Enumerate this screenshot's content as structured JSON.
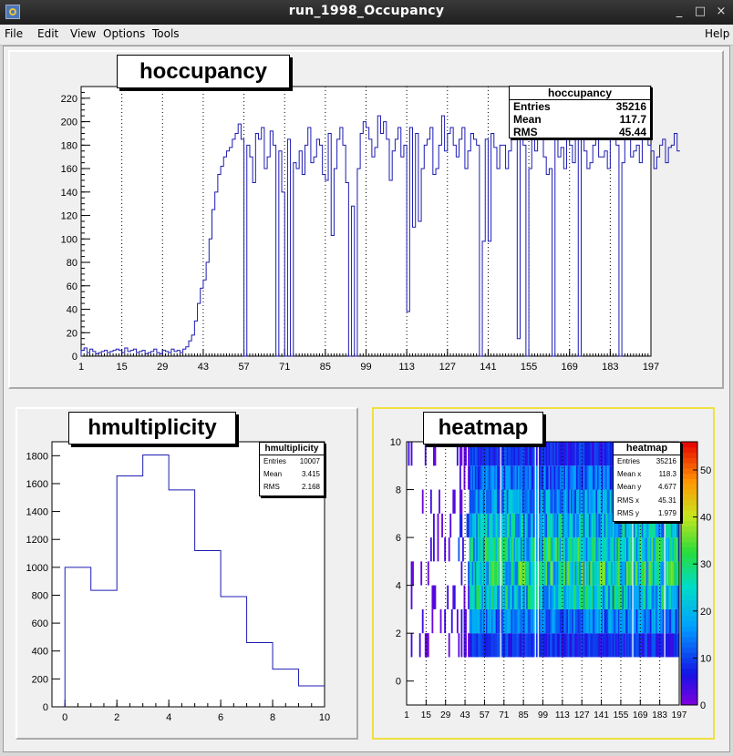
{
  "window": {
    "title": "run_1998_Occupancy",
    "minimize": "_",
    "maximize": "□",
    "close": "×"
  },
  "menu": {
    "file": "File",
    "edit": "Edit",
    "view": "View",
    "options": "Options",
    "tools": "Tools",
    "help": "Help"
  },
  "colors": {
    "line": "#1c1cb4",
    "pad": "#f0f0f0",
    "active_pad_border": "#f0e040"
  },
  "chart_data": [
    {
      "type": "line",
      "title": "hoccupancy",
      "xlabel": "",
      "ylabel": "",
      "xlim": [
        1,
        197
      ],
      "ylim": [
        0,
        230
      ],
      "x_ticks": [
        "1",
        "15",
        "29",
        "43",
        "57",
        "71",
        "85",
        "99",
        "113",
        "127",
        "141",
        "155",
        "169",
        "183",
        "197"
      ],
      "y_ticks": [
        "0",
        "20",
        "40",
        "60",
        "80",
        "100",
        "120",
        "140",
        "160",
        "180",
        "200",
        "220"
      ],
      "grid": "vertical-dotted",
      "x_start": 1,
      "values": [
        5,
        7,
        3,
        6,
        4,
        2,
        3,
        4,
        5,
        3,
        4,
        5,
        6,
        5,
        3,
        7,
        4,
        5,
        6,
        3,
        4,
        5,
        2,
        3,
        4,
        6,
        3,
        2,
        5,
        4,
        3,
        6,
        4,
        5,
        3,
        6,
        8,
        13,
        18,
        30,
        45,
        58,
        65,
        80,
        100,
        125,
        140,
        155,
        162,
        170,
        175,
        178,
        185,
        190,
        198,
        185,
        195,
        180,
        170,
        168,
        190,
        185,
        195,
        160,
        170,
        192,
        180,
        0,
        148,
        140,
        175,
        185,
        198,
        165,
        160,
        175,
        155,
        180,
        195,
        165,
        170,
        185,
        180,
        155,
        150,
        190,
        175,
        160,
        185,
        195,
        180,
        148,
        0,
        128,
        0,
        160,
        190,
        200,
        195,
        185,
        170,
        178,
        205,
        190,
        200,
        185,
        150,
        175,
        185,
        195,
        170,
        180,
        185,
        195,
        110,
        190,
        170,
        160,
        180,
        185,
        195,
        155,
        160,
        180,
        205,
        175,
        190,
        195,
        180,
        170,
        185,
        195,
        160,
        175,
        190,
        185,
        180,
        170,
        200,
        185,
        165,
        190,
        178,
        160,
        180,
        180,
        160,
        175,
        185,
        190,
        170,
        195,
        180,
        165,
        160,
        185,
        175,
        190,
        200,
        170,
        155,
        160,
        0,
        185,
        170,
        178,
        160,
        185,
        180,
        165,
        190,
        200,
        195,
        175,
        160,
        165,
        180,
        185,
        170,
        170,
        175,
        160,
        185,
        195,
        180,
        0,
        165,
        190,
        185,
        170,
        175,
        180,
        165,
        185,
        190,
        180,
        175,
        160,
        170,
        180,
        185,
        165,
        178,
        180,
        190,
        175
      ],
      "overrides": [
        {
          "bin": 57,
          "value": 0
        },
        {
          "bin": 71,
          "value": 0
        },
        {
          "bin": 73,
          "value": 0
        },
        {
          "bin": 113,
          "value": 38
        },
        {
          "bin": 138,
          "value": 0
        },
        {
          "bin": 139,
          "value": 0
        },
        {
          "bin": 141,
          "value": 98
        },
        {
          "bin": 151,
          "value": 15
        },
        {
          "bin": 154,
          "value": 0
        },
        {
          "bin": 172,
          "value": 0
        },
        {
          "bin": 60,
          "value": 148
        },
        {
          "bin": 69,
          "value": 175
        },
        {
          "bin": 87,
          "value": 103
        },
        {
          "bin": 117,
          "value": 115
        },
        {
          "bin": 139,
          "value": 98
        }
      ],
      "stats": {
        "name": "hoccupancy",
        "entries_label": "Entries",
        "entries": "35216",
        "mean_label": "Mean",
        "mean": "117.7",
        "rms_label": "RMS",
        "rms": "45.44"
      }
    },
    {
      "type": "bar",
      "title": "hmultiplicity",
      "xlabel": "",
      "ylabel": "",
      "xlim": [
        -0.5,
        10
      ],
      "ylim": [
        0,
        1900
      ],
      "x_ticks": [
        "0",
        "2",
        "4",
        "6",
        "8",
        "10"
      ],
      "y_ticks": [
        "0",
        "200",
        "400",
        "600",
        "800",
        "1000",
        "1200",
        "1400",
        "1600",
        "1800"
      ],
      "bin_edges": [
        0,
        1,
        2,
        3,
        4,
        5,
        6,
        7,
        8,
        9,
        10
      ],
      "values": [
        1000,
        835,
        1655,
        1805,
        1555,
        1120,
        790,
        460,
        270,
        150
      ],
      "stats": {
        "name": "hmultiplicity",
        "entries_label": "Entries",
        "entries": "10007",
        "mean_label": "Mean",
        "mean": "3.415",
        "rms_label": "RMS",
        "rms": "2.168"
      }
    },
    {
      "type": "heatmap",
      "title": "heatmap",
      "xlabel": "",
      "ylabel": "",
      "xlim": [
        1,
        197
      ],
      "ylim": [
        -1,
        10
      ],
      "x_ticks": [
        "1",
        "15",
        "29",
        "43",
        "57",
        "71",
        "85",
        "99",
        "113",
        "127",
        "141",
        "155",
        "169",
        "183",
        "197"
      ],
      "y_ticks": [
        "0",
        "2",
        "4",
        "6",
        "8",
        "10"
      ],
      "z_ticks": [
        "0",
        "10",
        "20",
        "30",
        "40",
        "50"
      ],
      "zlim": [
        0,
        56
      ],
      "rows": 10,
      "row_start": 0,
      "row_means": [
        0,
        8,
        14,
        22,
        26,
        24,
        20,
        16,
        12,
        8
      ],
      "stats": {
        "name": "heatmap",
        "entries_label": "Entries",
        "entries": "35216",
        "meanx_label": "Mean x",
        "meanx": "118.3",
        "meany_label": "Mean y",
        "meany": "4.677",
        "rmsx_label": "RMS x",
        "rmsx": "45.31",
        "rmsy_label": "RMS y",
        "rmsy": "1.979"
      }
    }
  ]
}
